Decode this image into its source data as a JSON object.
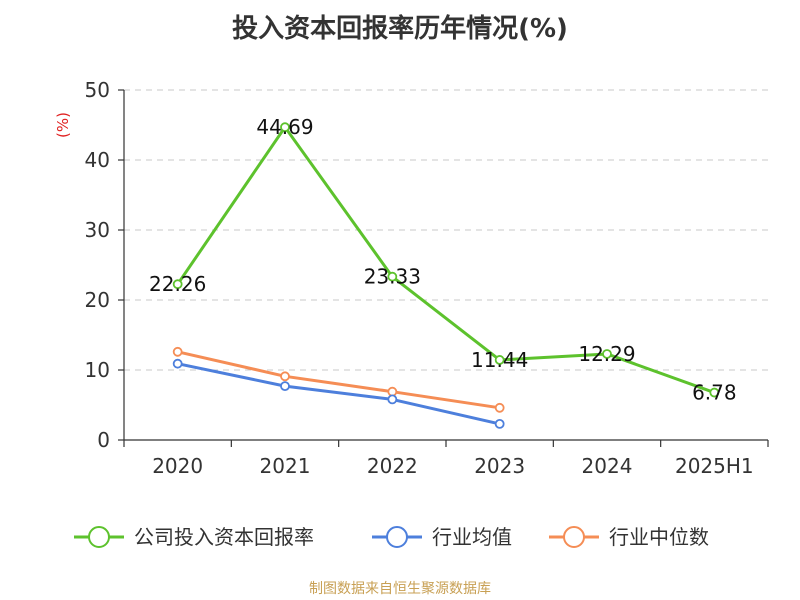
{
  "title": "投入资本回报率历年情况(%)",
  "source": "制图数据来自恒生聚源数据库",
  "chart_data": {
    "type": "line",
    "title": "投入资本回报率历年情况(%)",
    "ylabel": "(%)",
    "categories": [
      "2020",
      "2021",
      "2022",
      "2023",
      "2024",
      "2025H1"
    ],
    "ylim": [
      0,
      50
    ],
    "yticks": [
      0,
      10,
      20,
      30,
      40,
      50
    ],
    "grid": true,
    "legend_position": "bottom",
    "series": [
      {
        "name": "公司投入资本回报率",
        "color": "#5dc22d",
        "values": [
          22.26,
          44.69,
          23.33,
          11.44,
          12.29,
          6.78
        ],
        "labels": [
          "22.26",
          "44.69",
          "23.33",
          "11.44",
          "12.29",
          "6.78"
        ]
      },
      {
        "name": "行业均值",
        "color": "#4d7fdc",
        "values": [
          10.9,
          7.7,
          5.8,
          2.3,
          null,
          null
        ]
      },
      {
        "name": "行业中位数",
        "color": "#f58d55",
        "values": [
          12.6,
          9.1,
          6.9,
          4.6,
          null,
          null
        ]
      }
    ]
  }
}
